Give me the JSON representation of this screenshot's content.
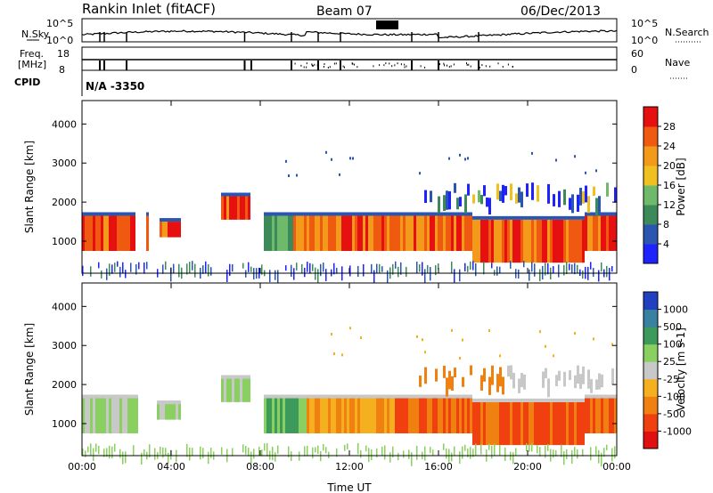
{
  "header": {
    "title": "Rankin Inlet (fitACF)",
    "beam": "Beam 07",
    "date": "06/Dec/2013"
  },
  "panel_labels": {
    "nsky": "N.Sky",
    "freq_line1": "Freq.",
    "freq_line2": "[MHz]",
    "cpid": "CPID",
    "nsearch": "N.Search",
    "nave": "Nave",
    "cpid_value": "N/A  -3350"
  },
  "chart_data": [
    {
      "id": "noise",
      "type": "line",
      "ylabel_left": "N.Sky",
      "ylabel_right": "N.Search",
      "left_ticks": [
        "10^5",
        "10^0"
      ],
      "right_ticks": [
        "10^5",
        "10^0"
      ],
      "y_scale": "log",
      "ylim": [
        1,
        100000
      ]
    },
    {
      "id": "freq_nave",
      "type": "line",
      "left_ticks": [
        "18",
        "8"
      ],
      "right_ticks": [
        "60",
        "0"
      ],
      "ylabel_left": "Freq. [MHz]",
      "ylabel_right": "Nave"
    },
    {
      "id": "power",
      "type": "heatmap",
      "xlabel": "",
      "ylabel": "Slant Range [km]",
      "x_ticks": [
        "00:00",
        "04:00",
        "08:00",
        "12:00",
        "16:00",
        "20:00",
        "00:00"
      ],
      "y_ticks": [
        1000,
        2000,
        3000,
        4000
      ],
      "ylim": [
        180,
        4600
      ],
      "xlim_hours": [
        0,
        24
      ],
      "colorbar_label": "Power [dB]",
      "colorbar_ticks": [
        "4",
        "8",
        "12",
        "16",
        "20",
        "24",
        "28"
      ],
      "colorbar_colors": [
        "#1e22ff",
        "#2a55b0",
        "#3c8a5a",
        "#6fba6a",
        "#f0c020",
        "#f39a1a",
        "#f05a10",
        "#e61010"
      ]
    },
    {
      "id": "velocity",
      "type": "heatmap",
      "xlabel": "Time UT",
      "ylabel": "Slant Range [km]",
      "x_ticks": [
        "00:00",
        "04:00",
        "08:00",
        "12:00",
        "16:00",
        "20:00",
        "00:00"
      ],
      "y_ticks": [
        1000,
        2000,
        3000,
        4000
      ],
      "ylim": [
        180,
        4600
      ],
      "xlim_hours": [
        0,
        24
      ],
      "colorbar_label": "Velocity [m s-1]",
      "colorbar_ticks": [
        "1000",
        "500",
        "100",
        "25",
        "-25",
        "-100",
        "-500",
        "-1000"
      ],
      "colorbar_colors": [
        "#2040c0",
        "#3a80a0",
        "#3c9a5a",
        "#8ad060",
        "#c8c8c8",
        "#f5b020",
        "#f08010",
        "#f04010",
        "#e01010"
      ]
    }
  ]
}
